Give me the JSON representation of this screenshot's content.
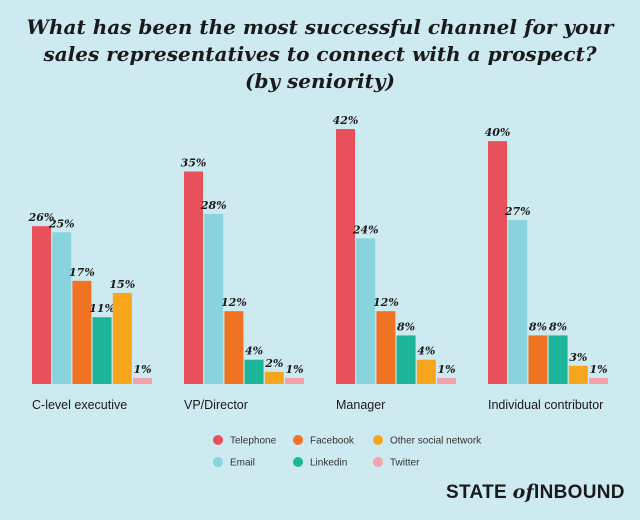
{
  "chart_data": {
    "type": "bar",
    "title_lines": [
      "What has been the most successful channel for your",
      "sales representatives to connect with a prospect?",
      "(by seniority)"
    ],
    "categories": [
      "C-level executive",
      "VP/Director",
      "Manager",
      "Individual contributor"
    ],
    "series": [
      {
        "name": "Telephone",
        "color": "#e8505b",
        "values": [
          26,
          35,
          42,
          40
        ]
      },
      {
        "name": "Email",
        "color": "#89d3dc",
        "values": [
          25,
          28,
          24,
          27
        ]
      },
      {
        "name": "Facebook",
        "color": "#f07323",
        "values": [
          17,
          12,
          12,
          8
        ]
      },
      {
        "name": "Linkedin",
        "color": "#1db59a",
        "values": [
          11,
          4,
          8,
          8
        ]
      },
      {
        "name": "Other social network",
        "color": "#f7a51c",
        "values": [
          15,
          2,
          4,
          3
        ]
      },
      {
        "name": "Twitter",
        "color": "#f4a3ae",
        "values": [
          1,
          1,
          1,
          1
        ]
      }
    ],
    "value_suffix": "%",
    "legend_position": "bottom-center",
    "grid": false
  },
  "brand": {
    "state": "STATE",
    "of": "of",
    "inbound": "INBOUND"
  }
}
